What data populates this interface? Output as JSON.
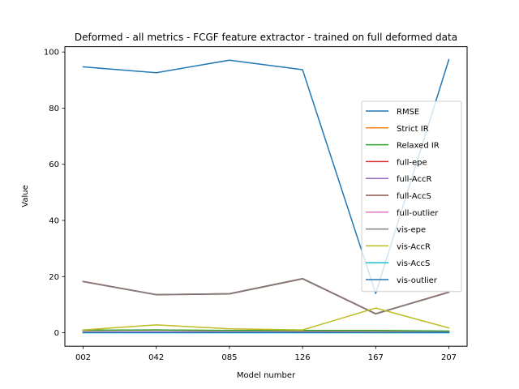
{
  "chart_data": {
    "type": "line",
    "title": "Deformed - all metrics - FCGF feature extractor -  trained on full deformed data",
    "xlabel": "Model number",
    "ylabel": "Value",
    "categories": [
      "002",
      "042",
      "085",
      "126",
      "167",
      "207"
    ],
    "ylim": [
      -4.8,
      101.9
    ],
    "yticks": [
      0,
      20,
      40,
      60,
      80,
      100
    ],
    "grid": false,
    "legend_position": "center-right",
    "series": [
      {
        "name": "RMSE",
        "color": "#1f77b4",
        "values": [
          94.7,
          92.6,
          97.1,
          93.7,
          14.0,
          97.3
        ]
      },
      {
        "name": "Strict IR",
        "color": "#ff7f0e",
        "values": [
          0.9,
          1.0,
          0.8,
          0.7,
          0.7,
          0.5
        ]
      },
      {
        "name": "Relaxed IR",
        "color": "#2ca02c",
        "values": [
          0.9,
          1.0,
          0.8,
          0.8,
          0.8,
          0.6
        ]
      },
      {
        "name": "full-epe",
        "color": "#d62728",
        "values": [
          18.3,
          13.6,
          13.9,
          19.3,
          6.8,
          14.5
        ]
      },
      {
        "name": "full-AccR",
        "color": "#9467bd",
        "values": [
          0.2,
          0.3,
          0.2,
          0.2,
          0.1,
          0.1
        ]
      },
      {
        "name": "full-AccS",
        "color": "#8c564b",
        "values": [
          18.2,
          13.5,
          13.8,
          19.2,
          6.7,
          14.4
        ]
      },
      {
        "name": "full-outlier",
        "color": "#e377c2",
        "values": [
          0.3,
          0.4,
          0.3,
          0.3,
          0.2,
          0.2
        ]
      },
      {
        "name": "vis-epe",
        "color": "#7f7f7f",
        "values": [
          18.2,
          13.6,
          13.9,
          19.3,
          6.8,
          14.4
        ]
      },
      {
        "name": "vis-AccR",
        "color": "#bcbd22",
        "values": [
          1.0,
          2.8,
          1.4,
          1.0,
          8.8,
          1.7
        ]
      },
      {
        "name": "vis-AccS",
        "color": "#17becf",
        "values": [
          0.0,
          0.0,
          0.0,
          0.0,
          0.0,
          0.0
        ]
      },
      {
        "name": "vis-outlier",
        "color": "#1f77b4",
        "values": [
          0.1,
          0.1,
          0.1,
          0.1,
          0.1,
          0.1
        ]
      }
    ]
  }
}
